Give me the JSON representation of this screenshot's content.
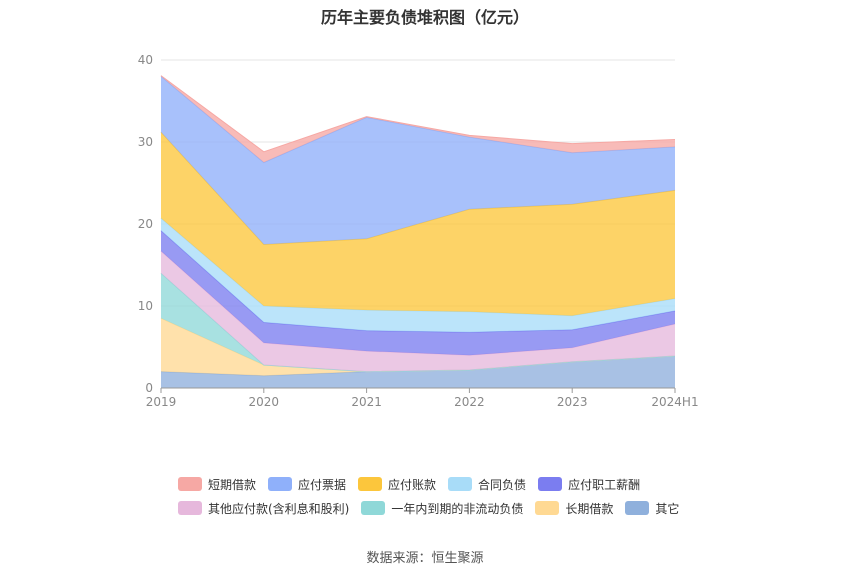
{
  "title": "历年主要负债堆积图（亿元）",
  "source": "数据来源：恒生聚源",
  "chart_data": {
    "type": "area",
    "stacked": true,
    "unit": "亿元",
    "x": [
      "2019",
      "2020",
      "2021",
      "2022",
      "2023",
      "2024H1"
    ],
    "ylim": [
      0,
      40
    ],
    "yticks": [
      0,
      10,
      20,
      30,
      40
    ],
    "grid": true,
    "legend_position": "bottom",
    "series": [
      {
        "name": "其它",
        "color": "#8fb0dc",
        "values": [
          2.0,
          1.5,
          2.0,
          2.2,
          3.2,
          3.9
        ]
      },
      {
        "name": "长期借款",
        "color": "#ffd993",
        "values": [
          6.5,
          1.3,
          0.0,
          0.0,
          0.0,
          0.0
        ]
      },
      {
        "name": "一年内到期的非流动负债",
        "color": "#8fd8d8",
        "values": [
          5.5,
          0.0,
          0.0,
          0.0,
          0.0,
          0.0
        ]
      },
      {
        "name": "其他应付款(含利息和股利)",
        "color": "#e6b8dc",
        "values": [
          2.7,
          2.7,
          2.5,
          1.8,
          1.7,
          3.9
        ]
      },
      {
        "name": "应付职工薪酬",
        "color": "#7b7df0",
        "values": [
          2.5,
          2.5,
          2.5,
          2.8,
          2.2,
          1.6
        ]
      },
      {
        "name": "合同负债",
        "color": "#a8dcf8",
        "values": [
          1.5,
          2.0,
          2.5,
          2.5,
          1.7,
          1.5
        ]
      },
      {
        "name": "应付账款",
        "color": "#fcc63c",
        "values": [
          10.5,
          7.5,
          8.7,
          12.5,
          13.6,
          13.2
        ]
      },
      {
        "name": "应付票据",
        "color": "#8fb0fa",
        "values": [
          6.8,
          10.0,
          14.8,
          8.8,
          6.3,
          5.3
        ]
      },
      {
        "name": "短期借款",
        "color": "#f6a8a4",
        "values": [
          0.1,
          1.3,
          0.1,
          0.2,
          1.1,
          0.9
        ]
      }
    ]
  },
  "legend": {
    "rows": [
      [
        "短期借款",
        "应付票据",
        "应付账款",
        "合同负债",
        "应付职工薪酬"
      ],
      [
        "其他应付款(含利息和股利)",
        "一年内到期的非流动负债",
        "长期借款",
        "其它"
      ]
    ]
  }
}
